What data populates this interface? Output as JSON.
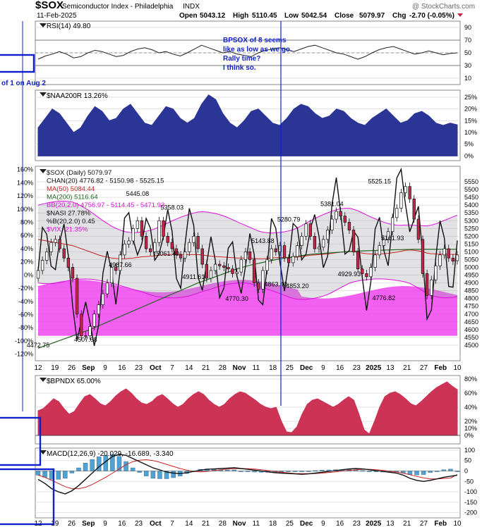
{
  "header": {
    "symbol": "$SOX",
    "name": "Semiconductor Index - Philadelphia",
    "exchange": "INDX",
    "watermark": "@ StockCharts.com",
    "date": "11-Feb-2025",
    "open_label": "Open",
    "open": "5043.12",
    "high_label": "High",
    "high": "5110.45",
    "low_label": "Low",
    "low": "5042.54",
    "close_label": "Close",
    "close": "5079.97",
    "chg_label": "Chg",
    "chg": "-2.70 (-0.05%)"
  },
  "annotations": {
    "note_lines": [
      "BPSOX of 8 seems",
      "like as low as we go.",
      "Rally time?",
      "I think so."
    ],
    "left_note": "of 1 on Aug 2"
  },
  "colors": {
    "price_up": "#ffffff",
    "price_down": "#c8254a",
    "ma50": "#cc2222",
    "ma200": "#226622",
    "bb": "#dd11dd",
    "nasi": "#111111",
    "vix_fill": "#ee44ee",
    "naa_fill": "#2b3596",
    "bpndx_fill": "#cc3355",
    "macd_hist": "#4fa3d4",
    "signal": "#cc2222",
    "annotation": "#1020cc"
  },
  "chart_data": [
    {
      "type": "line",
      "panel": "RSI",
      "legend": "RSI(14) 49.80",
      "ylim": [
        0,
        100
      ],
      "yticks": [
        10,
        30,
        50,
        70,
        90
      ],
      "yticklabels": [
        "10",
        "30",
        "50",
        "70",
        "90"
      ],
      "values": [
        40,
        45,
        48,
        52,
        48,
        42,
        44,
        50,
        54,
        52,
        48,
        44,
        46,
        52,
        56,
        58,
        55,
        50,
        52,
        48,
        45,
        50,
        56,
        62,
        58,
        54,
        50,
        52,
        48,
        46,
        44,
        50,
        54,
        56,
        58,
        55,
        52,
        56,
        60,
        62,
        58,
        54,
        50,
        48,
        44,
        40,
        44,
        50,
        55,
        58,
        60,
        56,
        52,
        48,
        50,
        53,
        50,
        47,
        49,
        50
      ]
    },
    {
      "type": "area",
      "panel": "$NAA200R",
      "legend": "$NAA200R 13.26%",
      "ylim": [
        -2,
        28
      ],
      "yticks": [
        0,
        5,
        10,
        15,
        20,
        25
      ],
      "yticklabels": [
        "0%",
        "5%",
        "10%",
        "15%",
        "20%",
        "25%"
      ],
      "values": [
        12,
        16,
        20,
        18,
        14,
        10,
        12,
        17,
        21,
        19,
        15,
        16,
        20,
        22,
        18,
        14,
        13,
        17,
        21,
        20,
        16,
        14,
        16,
        22,
        26,
        24,
        18,
        14,
        12,
        15,
        19,
        20,
        17,
        14,
        13,
        16,
        20,
        22,
        21,
        18,
        16,
        17,
        20,
        19,
        16,
        14,
        13,
        16,
        18,
        20,
        17,
        14,
        15,
        18,
        19,
        17,
        14,
        13,
        14,
        13.26
      ]
    },
    {
      "type": "candlestick",
      "panel": "price",
      "legends": [
        "$SOX (Daily) 5079.97",
        "CHAN(20) 4776.82 - 5150.98 - 5525.15",
        "MA(50) 5084.44",
        "MA(200) 5116.64",
        "BB(20,2.0) 4756.97 - 5114.45 - 5471.93",
        "$NASI 27.78%",
        "%B(20,2.0) 0.45",
        "$VIX -21.35%"
      ],
      "ylim": [
        4400,
        5650
      ],
      "yticks": [
        4500,
        4550,
        4600,
        4650,
        4700,
        4750,
        4800,
        4850,
        4900,
        4950,
        5000,
        5050,
        5100,
        5150,
        5200,
        5250,
        5300,
        5350,
        5400,
        5450,
        5500,
        5550
      ],
      "yticklabels": [
        "4500",
        "4550",
        "4600",
        "4650",
        "4700",
        "4750",
        "4800",
        "4850",
        "4900",
        "4950",
        "5000",
        "5050",
        "5100",
        "5150",
        "5200",
        "5250",
        "5300",
        "5350",
        "5400",
        "5450",
        "5500",
        "5550"
      ],
      "left_ticks": [
        -120,
        -100,
        -80,
        -60,
        -40,
        -20,
        0,
        20,
        40,
        60,
        80,
        100,
        120,
        140,
        160
      ],
      "left_ticklabels": [
        "-120%",
        "-100%",
        "-80%",
        "-60%",
        "-40%",
        "-20%",
        "0%",
        "20%",
        "40%",
        "60%",
        "80%",
        "100%",
        "120%",
        "140%",
        "160%"
      ],
      "close": [
        4980,
        5045,
        5100,
        5160,
        5180,
        5120,
        5060,
        5000,
        4930,
        4700,
        4560,
        4560,
        4620,
        4700,
        4760,
        4830,
        4900,
        5000,
        4980,
        5080,
        5150,
        5170,
        5250,
        5300,
        5200,
        5120,
        5100,
        5160,
        5300,
        5200,
        5160,
        5120,
        5080,
        5060,
        5100,
        5160,
        5200,
        5120,
        5020,
        4930,
        4980,
        5020,
        5010,
        5000,
        4990,
        4960,
        4970,
        5050,
        5100,
        5050,
        4900,
        4860,
        4980,
        5050,
        5120,
        5100,
        5140,
        5060,
        5030,
        5070,
        5140,
        5200,
        5280,
        5200,
        5120,
        5130,
        5180,
        5240,
        5310,
        5360,
        5330,
        5290,
        5240,
        5100,
        4990,
        4960,
        4940,
        5000,
        5080,
        5140,
        5180,
        5230,
        5320,
        5380,
        5480,
        5520,
        5440,
        5310,
        5180,
        4960,
        4820,
        4920,
        5010,
        5080,
        5120,
        5060,
        5040,
        5080.0
      ],
      "open": [
        4930,
        4980,
        5045,
        5100,
        5160,
        5180,
        5120,
        5060,
        5000,
        4930,
        4700,
        4560,
        4560,
        4620,
        4700,
        4760,
        4830,
        4900,
        5000,
        4980,
        5080,
        5150,
        5170,
        5250,
        5300,
        5200,
        5120,
        5100,
        5160,
        5300,
        5200,
        5160,
        5120,
        5080,
        5060,
        5100,
        5160,
        5200,
        5120,
        5020,
        4930,
        4980,
        5020,
        5010,
        5000,
        4990,
        4960,
        4970,
        5050,
        5100,
        5050,
        4900,
        4860,
        4980,
        5050,
        5120,
        5100,
        5140,
        5060,
        5030,
        5070,
        5140,
        5200,
        5280,
        5200,
        5120,
        5130,
        5180,
        5240,
        5310,
        5360,
        5330,
        5290,
        5240,
        5100,
        4990,
        4960,
        4940,
        5000,
        5080,
        5140,
        5180,
        5230,
        5320,
        5380,
        5480,
        5520,
        5440,
        5310,
        5180,
        4960,
        4820,
        4920,
        5010,
        5080,
        5120,
        5060,
        5043.12
      ],
      "ma50": [
        5180,
        5175,
        5170,
        5165,
        5160,
        5155,
        5150,
        5145,
        5140,
        5130,
        5120,
        5110,
        5100,
        5090,
        5080,
        5072,
        5066,
        5060,
        5058,
        5056,
        5056,
        5058,
        5060,
        5064,
        5068,
        5070,
        5072,
        5074,
        5078,
        5080,
        5082,
        5084,
        5084,
        5084,
        5083,
        5082,
        5082,
        5082,
        5080,
        5076,
        5072,
        5070,
        5068,
        5066,
        5064,
        5062,
        5060,
        5060,
        5060,
        5060,
        5058,
        5056,
        5056,
        5058,
        5060,
        5062,
        5064,
        5064,
        5064,
        5064,
        5066,
        5070,
        5074,
        5078,
        5080,
        5082,
        5084,
        5086,
        5090,
        5094,
        5098,
        5100,
        5102,
        5100,
        5096,
        5092,
        5088,
        5086,
        5086,
        5086,
        5088,
        5090,
        5094,
        5098,
        5104,
        5110,
        5112,
        5110,
        5106,
        5100,
        5092,
        5088,
        5086,
        5085,
        5085,
        5084,
        5084,
        5084.44
      ],
      "ma200": [
        4480,
        4490,
        4500,
        4510,
        4520,
        4530,
        4540,
        4550,
        4560,
        4570,
        4580,
        4590,
        4600,
        4612,
        4624,
        4636,
        4648,
        4660,
        4672,
        4684,
        4696,
        4708,
        4720,
        4732,
        4744,
        4756,
        4768,
        4780,
        4792,
        4804,
        4816,
        4828,
        4840,
        4852,
        4864,
        4876,
        4888,
        4900,
        4910,
        4920,
        4930,
        4940,
        4950,
        4960,
        4970,
        4980,
        4990,
        4998,
        5006,
        5014,
        5020,
        5026,
        5032,
        5038,
        5044,
        5050,
        5056,
        5060,
        5064,
        5068,
        5072,
        5076,
        5080,
        5084,
        5086,
        5088,
        5090,
        5092,
        5094,
        5096,
        5098,
        5100,
        5102,
        5104,
        5105,
        5106,
        5107,
        5108,
        5109,
        5110,
        5111,
        5112,
        5113,
        5114,
        5114,
        5115,
        5115,
        5116,
        5116,
        5116,
        5116,
        5116,
        5116,
        5116,
        5116,
        5116,
        5116,
        5116.64
      ],
      "price_labels": [
        {
          "text": "4507.68",
          "i": 11,
          "price": 4507.68
        },
        {
          "text": "4987.66",
          "i": 19,
          "price": 4987.66
        },
        {
          "text": "5445.08",
          "i": 23,
          "price": 5445.08
        },
        {
          "text": "5358.03",
          "i": 31,
          "price": 5358.03
        },
        {
          "text": "5061.40",
          "i": 30,
          "price": 5061.4
        },
        {
          "text": "4911.61",
          "i": 36,
          "price": 4911.61
        },
        {
          "text": "4770.30",
          "i": 46,
          "price": 4770.3
        },
        {
          "text": "5143.88",
          "i": 52,
          "price": 5143.88
        },
        {
          "text": "4863.40",
          "i": 55,
          "price": 4863.4
        },
        {
          "text": "5280.79",
          "i": 58,
          "price": 5280.79
        },
        {
          "text": "4853.20",
          "i": 60,
          "price": 4853.2
        },
        {
          "text": "5381.04",
          "i": 68,
          "price": 5381.04
        },
        {
          "text": "4929.93",
          "i": 72,
          "price": 4929.93
        },
        {
          "text": "5525.15",
          "i": 79,
          "price": 5525.15
        },
        {
          "text": "5161.93",
          "i": 82,
          "price": 5161.93
        },
        {
          "text": "4776.82",
          "i": 80,
          "price": 4776.82
        },
        {
          "text": "4472.75",
          "i": 0,
          "price": 4472.75
        }
      ]
    },
    {
      "type": "area",
      "panel": "$BPNDX",
      "legend": "$BPNDX 65.00%",
      "ylim": [
        -12,
        85
      ],
      "yticks": [
        0,
        10,
        20,
        40,
        60,
        80
      ],
      "yticklabels": [
        "0%",
        "10%",
        "20%",
        "40%",
        "60%",
        "80%"
      ],
      "values": [
        35,
        38,
        45,
        52,
        48,
        38,
        30,
        34,
        45,
        55,
        58,
        52,
        45,
        42,
        48,
        56,
        62,
        66,
        60,
        52,
        46,
        44,
        48,
        55,
        58,
        52,
        45,
        40,
        44,
        52,
        58,
        62,
        58,
        50,
        44,
        40,
        44,
        52,
        58,
        62,
        60,
        55,
        50,
        44,
        40,
        38,
        40,
        20,
        5,
        4,
        12,
        30,
        44,
        50,
        52,
        48,
        44,
        40,
        44,
        50,
        55,
        50,
        30,
        8,
        2,
        20,
        40,
        55,
        60,
        62,
        58,
        52,
        45,
        42,
        48,
        55,
        62,
        68,
        72,
        76,
        70,
        65
      ]
    },
    {
      "type": "line",
      "panel": "MACD",
      "legend": "MACD(12,26,9) -20.029, -16.689, -3.340",
      "ylim": [
        -225,
        110
      ],
      "yticks": [
        -200,
        -150,
        -100,
        -50,
        0,
        50,
        100
      ],
      "yticklabels": [
        "-200",
        "-150",
        "-100",
        "-50",
        "0",
        "50",
        "100"
      ],
      "macd": [
        -40,
        -60,
        -85,
        -100,
        -110,
        -95,
        -70,
        -40,
        -10,
        20,
        45,
        70,
        80,
        75,
        60,
        45,
        30,
        15,
        5,
        -5,
        -10,
        -12,
        -8,
        -2,
        4,
        8,
        10,
        12,
        14,
        16,
        12,
        8,
        4,
        0,
        -4,
        -8,
        -10,
        -12,
        -14,
        -16,
        -14,
        -10,
        -6,
        -2,
        2,
        6,
        10,
        12,
        10,
        6,
        2,
        -2,
        -6,
        -10,
        -20,
        -35,
        -45,
        -50,
        -45,
        -38,
        -30,
        -25,
        -20.029
      ],
      "signal": [
        -20,
        -30,
        -45,
        -60,
        -75,
        -85,
        -85,
        -78,
        -65,
        -48,
        -30,
        -10,
        10,
        30,
        45,
        52,
        54,
        50,
        42,
        32,
        22,
        12,
        4,
        -2,
        -4,
        -2,
        2,
        6,
        9,
        11,
        12,
        11,
        9,
        6,
        2,
        -2,
        -6,
        -9,
        -12,
        -13,
        -13,
        -12,
        -10,
        -7,
        -4,
        0,
        3,
        6,
        8,
        8,
        6,
        3,
        -1,
        -5,
        -10,
        -18,
        -26,
        -33,
        -38,
        -38,
        -36,
        -34,
        -16.689
      ],
      "hist": [
        -20,
        -30,
        -40,
        -40,
        -35,
        -10,
        15,
        38,
        55,
        68,
        75,
        80,
        70,
        45,
        15,
        -7,
        -24,
        -35,
        -37,
        -37,
        -32,
        -24,
        -12,
        0,
        8,
        10,
        8,
        6,
        5,
        5,
        0,
        -3,
        -5,
        -6,
        -6,
        -6,
        -4,
        -3,
        -2,
        -3,
        -1,
        2,
        4,
        5,
        6,
        6,
        7,
        6,
        2,
        -2,
        -4,
        -5,
        -5,
        -5,
        -10,
        -17,
        -19,
        -17,
        -7,
        0,
        6,
        9,
        -3.34
      ]
    }
  ],
  "x_axis": {
    "labels": [
      "12",
      "19",
      "26",
      "Sep",
      "9",
      "16",
      "23",
      "Oct",
      "7",
      "14",
      "21",
      "28",
      "Nov",
      "11",
      "18",
      "25",
      "Dec",
      "9",
      "16",
      "23",
      "2025",
      "13",
      "21",
      "27",
      "Feb",
      "10"
    ],
    "bold": [
      "Sep",
      "Oct",
      "Nov",
      "Dec",
      "2025",
      "Feb"
    ]
  }
}
